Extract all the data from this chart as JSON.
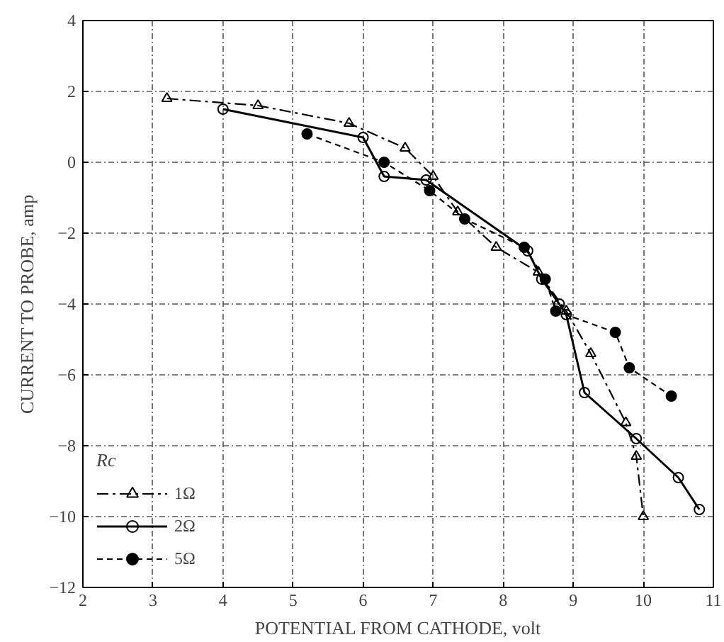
{
  "chart_data": {
    "type": "line",
    "xlabel": "POTENTIAL FROM CATHODE, volt",
    "ylabel": "CURRENT TO PROBE, amp",
    "legend_title": "Rc",
    "xlim": [
      2,
      11
    ],
    "xticks": [
      2,
      3,
      4,
      5,
      6,
      7,
      8,
      9,
      10,
      11
    ],
    "ylim": [
      -12,
      4
    ],
    "yticks": [
      -12,
      -10,
      -8,
      -6,
      -4,
      -2,
      0,
      2,
      4
    ],
    "grid": true,
    "legend": "bottom left",
    "series": [
      {
        "name": "1Ω",
        "color": "#000000",
        "marker": "triangle",
        "line_style": "dashed",
        "x": [
          3.2,
          4.5,
          5.8,
          6.6,
          7.0,
          7.35,
          7.9,
          8.5,
          8.9,
          9.25,
          9.75,
          9.9,
          10.0
        ],
        "values": [
          1.8,
          1.6,
          1.1,
          0.4,
          -0.4,
          -1.4,
          -2.4,
          -3.1,
          -4.2,
          -5.4,
          -7.35,
          -8.3,
          -10.0
        ]
      },
      {
        "name": "2Ω",
        "color": "#000000",
        "marker": "circle",
        "line_style": "solid",
        "x": [
          4.0,
          6.0,
          6.3,
          6.9,
          8.35,
          8.55,
          8.8,
          8.9,
          9.16,
          9.9,
          10.5,
          10.8
        ],
        "values": [
          1.5,
          0.7,
          -0.4,
          -0.5,
          -2.5,
          -3.3,
          -4.0,
          -4.3,
          -6.5,
          -7.8,
          -8.9,
          -9.8
        ]
      },
      {
        "name": "5Ω",
        "color": "#000000",
        "marker": "circle",
        "line_style": "dotted",
        "x": [
          5.2,
          6.3,
          6.95,
          7.45,
          8.3,
          8.6,
          8.75,
          9.6,
          9.8,
          10.4
        ],
        "values": [
          0.8,
          0.0,
          -0.8,
          -1.6,
          -2.4,
          -3.3,
          -4.2,
          -4.8,
          -5.8,
          -6.6
        ]
      }
    ]
  }
}
